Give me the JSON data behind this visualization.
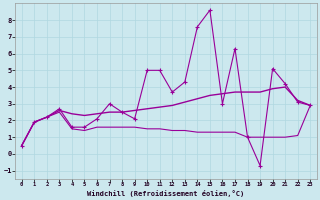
{
  "xlabel": "Windchill (Refroidissement éolien,°C)",
  "bg_color": "#cce8ee",
  "line_color": "#990099",
  "xlim": [
    -0.5,
    23.5
  ],
  "ylim": [
    -1.5,
    9.0
  ],
  "xticks": [
    0,
    1,
    2,
    3,
    4,
    5,
    6,
    7,
    8,
    9,
    10,
    11,
    12,
    13,
    14,
    15,
    16,
    17,
    18,
    19,
    20,
    21,
    22,
    23
  ],
  "yticks": [
    -1,
    0,
    1,
    2,
    3,
    4,
    5,
    6,
    7,
    8
  ],
  "series1_x": [
    0,
    1,
    2,
    3,
    4,
    5,
    6,
    7,
    8,
    9,
    10,
    11,
    12,
    13,
    14,
    15,
    16,
    17,
    18,
    19,
    20,
    21,
    22,
    23
  ],
  "series1_y": [
    0.5,
    1.9,
    2.2,
    2.7,
    1.6,
    1.6,
    2.1,
    3.0,
    2.5,
    2.1,
    5.0,
    5.0,
    3.7,
    4.3,
    7.6,
    8.6,
    3.0,
    6.3,
    1.0,
    -0.7,
    5.1,
    4.2,
    3.1,
    2.9
  ],
  "series2_x": [
    0,
    1,
    2,
    3,
    4,
    5,
    6,
    7,
    8,
    9,
    10,
    11,
    12,
    13,
    14,
    15,
    16,
    17,
    18,
    19,
    20,
    21,
    22,
    23
  ],
  "series2_y": [
    0.5,
    1.9,
    2.2,
    2.6,
    2.4,
    2.3,
    2.4,
    2.5,
    2.5,
    2.6,
    2.7,
    2.8,
    2.9,
    3.1,
    3.3,
    3.5,
    3.6,
    3.7,
    3.7,
    3.7,
    3.9,
    4.0,
    3.2,
    2.9
  ],
  "series3_x": [
    0,
    1,
    2,
    3,
    4,
    5,
    6,
    7,
    8,
    9,
    10,
    11,
    12,
    13,
    14,
    15,
    16,
    17,
    18,
    19,
    20,
    21,
    22,
    23
  ],
  "series3_y": [
    0.5,
    1.9,
    2.2,
    2.5,
    1.5,
    1.4,
    1.6,
    1.6,
    1.6,
    1.6,
    1.5,
    1.5,
    1.4,
    1.4,
    1.3,
    1.3,
    1.3,
    1.3,
    1.0,
    1.0,
    1.0,
    1.0,
    1.1,
    2.9
  ]
}
